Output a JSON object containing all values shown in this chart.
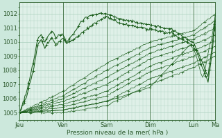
{
  "bg_color": "#cce8dc",
  "plot_bg_color": "#dff0e8",
  "grid_color": "#aacfbe",
  "line_color": "#1a5c1a",
  "xlabel": "Pression niveau de la mer( hPa )",
  "ylim": [
    1004.5,
    1012.8
  ],
  "yticks": [
    1005,
    1006,
    1007,
    1008,
    1009,
    1010,
    1011,
    1012
  ],
  "xtick_labels": [
    "Jeu",
    "Ven",
    "Sam",
    "Dim",
    "Lun",
    "Ma"
  ],
  "xtick_positions": [
    0,
    48,
    96,
    144,
    192,
    216
  ],
  "total_points": 217
}
